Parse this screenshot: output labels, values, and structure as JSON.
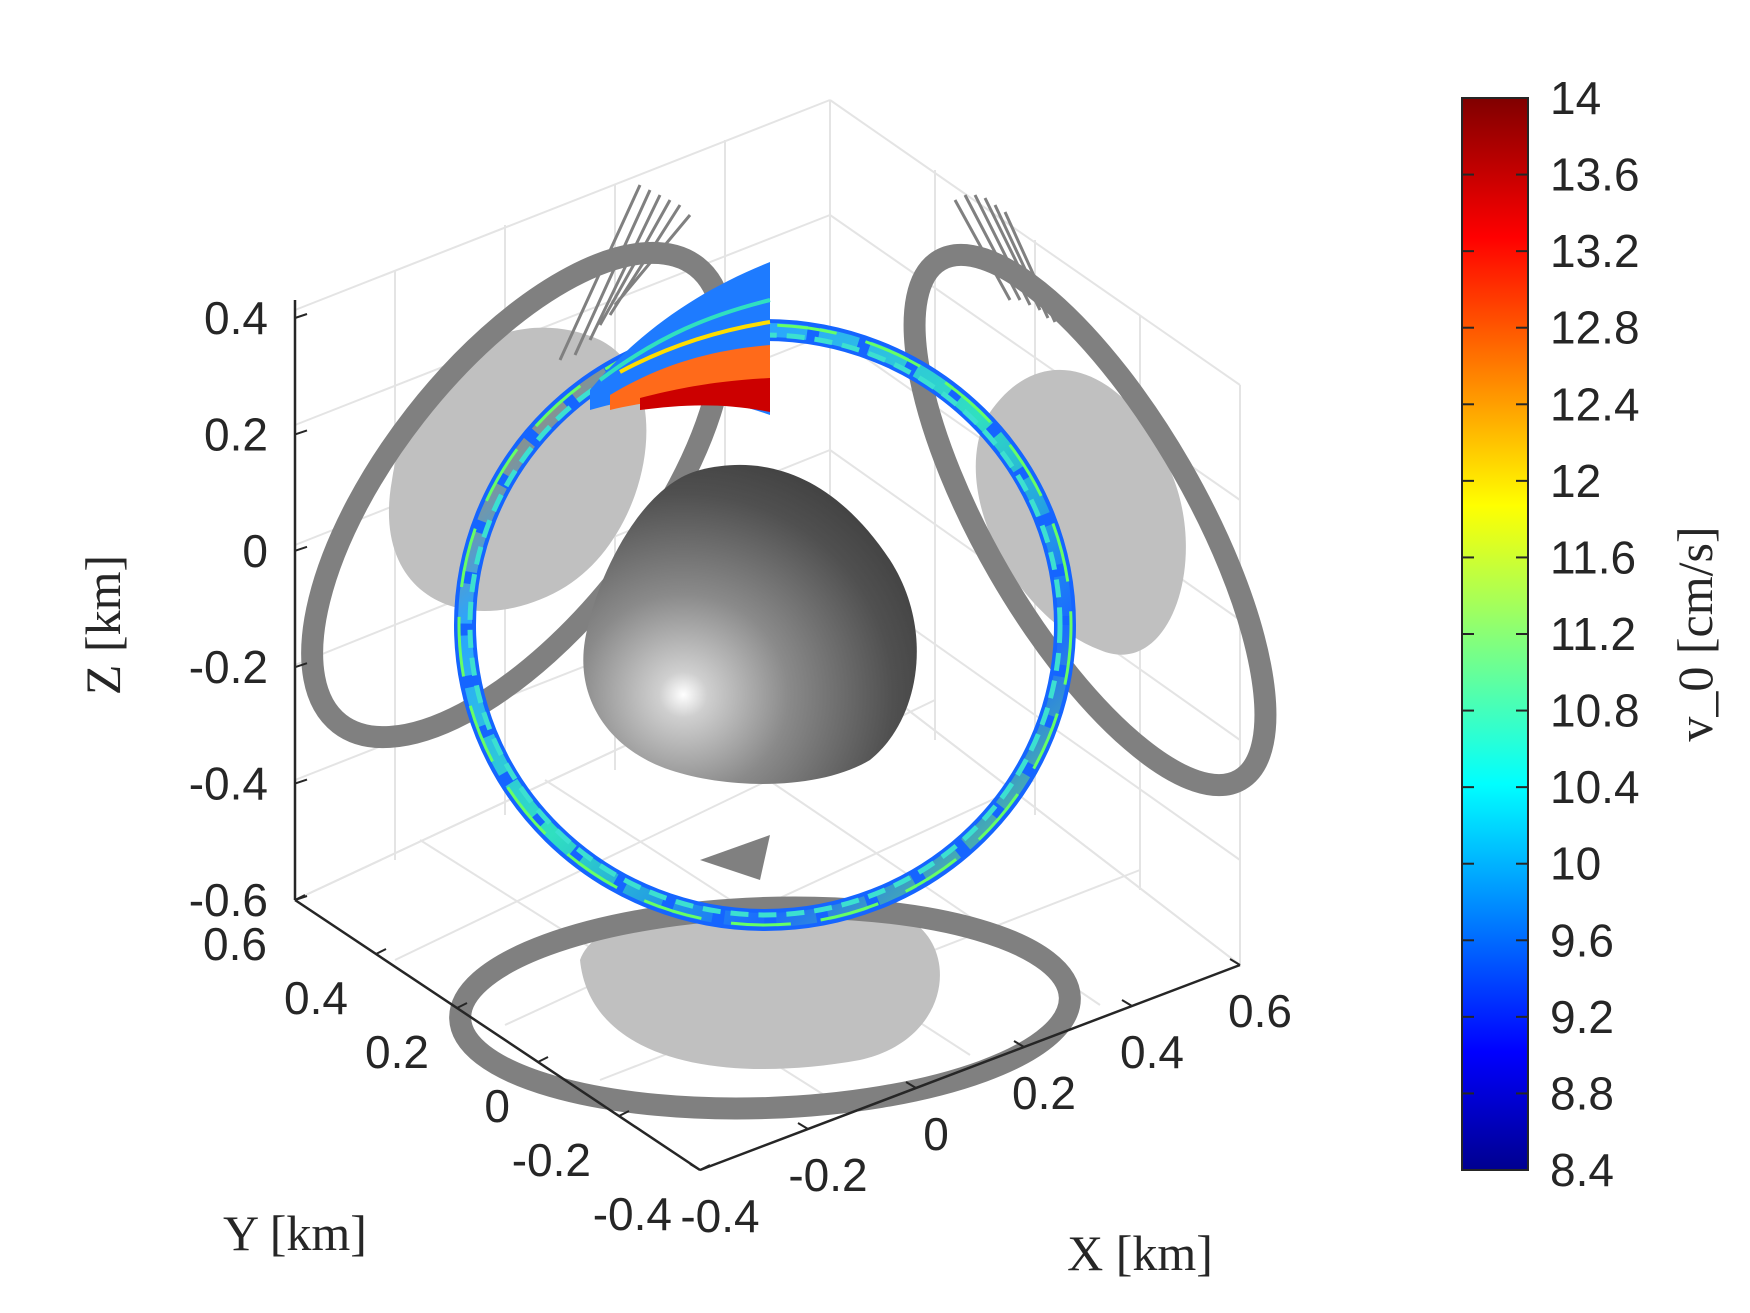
{
  "chart_data": {
    "type": "scatter",
    "dimensions": 3,
    "xlabel": "X [km]",
    "ylabel": "Y [km]",
    "zlabel": "Z [km]",
    "xlim": [
      -0.4,
      0.6
    ],
    "ylim": [
      -0.4,
      0.6
    ],
    "zlim": [
      -0.6,
      0.4
    ],
    "x_ticks": [
      "-0.4",
      "-0.2",
      "0",
      "0.2",
      "0.4",
      "0.6"
    ],
    "y_ticks": [
      "-0.4",
      "-0.2",
      "0",
      "0.2",
      "0.4",
      "0.6"
    ],
    "z_ticks": [
      "-0.6",
      "-0.4",
      "-0.2",
      "0",
      "0.2",
      "0.4"
    ],
    "grid": true,
    "colorbar": {
      "label": "v_0 [cm/s]",
      "colormap": "jet",
      "range": [
        8.4,
        14
      ],
      "ticks": [
        "14",
        "13.6",
        "13.2",
        "12.8",
        "12.4",
        "12",
        "11.6",
        "11.2",
        "10.8",
        "10.4",
        "10",
        "9.6",
        "9.2",
        "8.8",
        "8.4"
      ]
    },
    "colors": {
      "projection": "#808080",
      "shadow": "#c0c0c0",
      "asteroid": "#555555",
      "grid": "#e4e4e4",
      "axis": "#262626"
    }
  }
}
